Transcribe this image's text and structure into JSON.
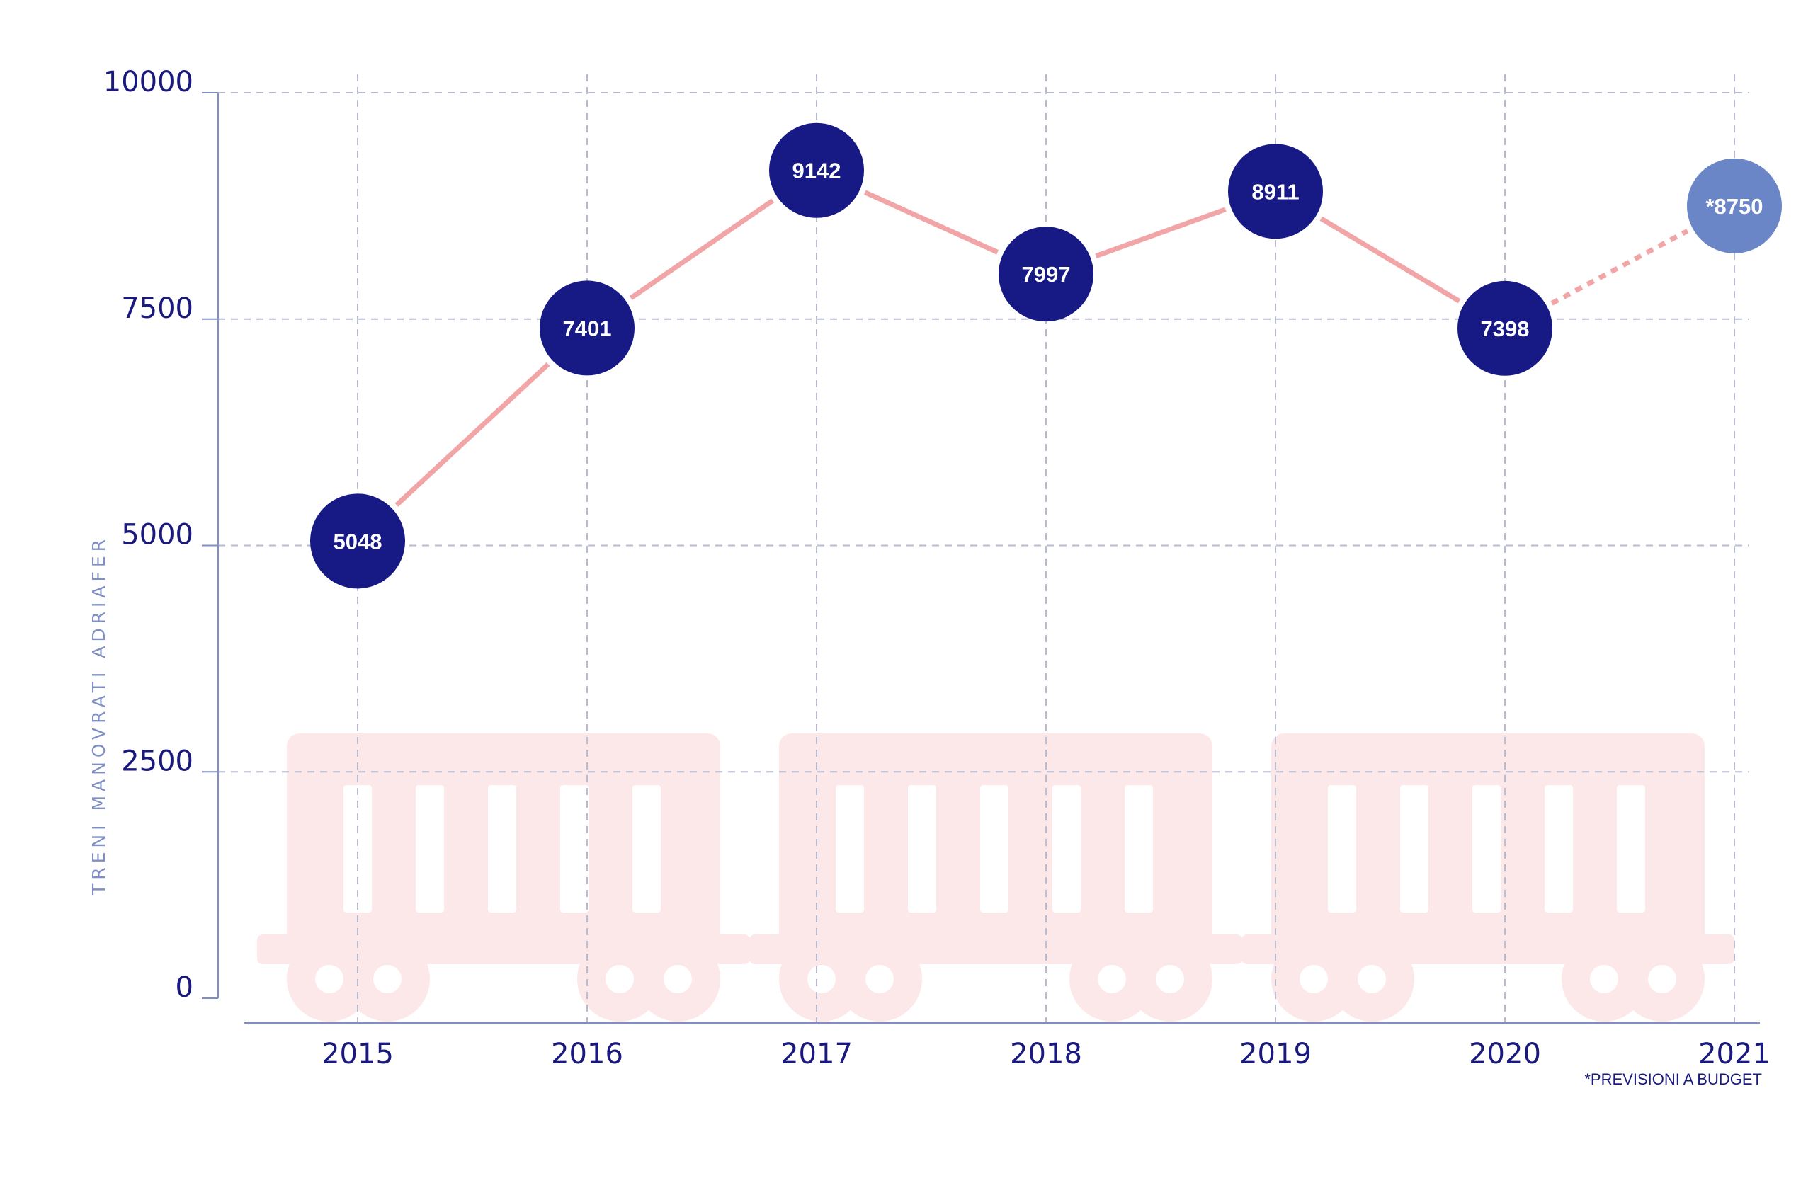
{
  "chart_data": {
    "type": "line",
    "x": [
      "2015",
      "2016",
      "2017",
      "2018",
      "2019",
      "2020",
      "2021"
    ],
    "values": [
      5048,
      7401,
      9142,
      7997,
      8911,
      7398,
      8750
    ],
    "labels": [
      "5048",
      "7401",
      "9142",
      "7997",
      "8911",
      "7398",
      "*8750"
    ],
    "forecast_index": 6,
    "ylabel": "TRENI MANOVRATI ADRIAFER",
    "yticks": [
      "0",
      "2500",
      "5000",
      "7500",
      "10000"
    ],
    "ytick_values": [
      0,
      2500,
      5000,
      7500,
      10000
    ],
    "ylim": [
      0,
      10000
    ],
    "grid": true,
    "footnote": "*PREVISIONI A BUDGET",
    "colors": {
      "point": "#171a84",
      "forecast_point": "#6b86c7",
      "line": "#f2a5a7",
      "axis": "#7f8fc3",
      "grid": "#b7bcd0",
      "text": "#1a1a7e",
      "train": "#fde8e9"
    }
  }
}
